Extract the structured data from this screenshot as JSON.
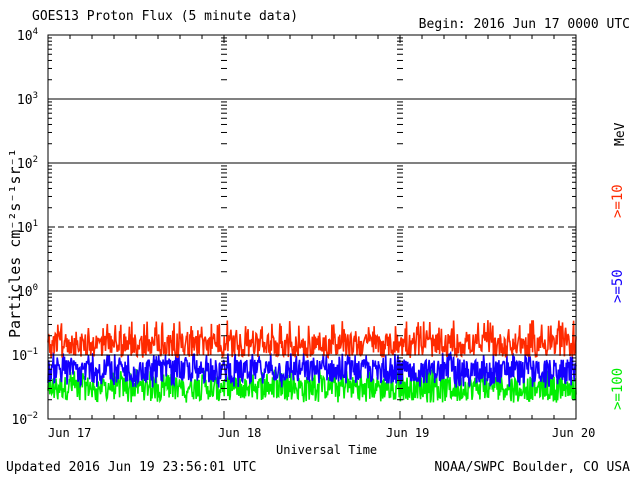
{
  "header": {
    "title": "GOES13 Proton Flux (5 minute data)",
    "begin": "Begin: 2016 Jun 17 0000 UTC"
  },
  "footer": {
    "updated": "Updated 2016 Jun 19 23:56:01 UTC",
    "credit": "NOAA/SWPC Boulder, CO USA"
  },
  "colors": {
    "ge10": "#ff2a00",
    "ge50": "#1400ff",
    "ge100": "#00ee00",
    "axes": "#000000"
  },
  "chart_data": {
    "type": "line",
    "title": "GOES13 Proton Flux (5 minute data)",
    "xlabel": "Universal Time",
    "ylabel": "Particles cm⁻²s⁻¹sr⁻¹",
    "yscale": "log",
    "ylim": [
      0.01,
      10000
    ],
    "ytick_labels": [
      "10⁻²",
      "10⁻¹",
      "10⁰",
      "10¹",
      "10²",
      "10³",
      "10⁴"
    ],
    "y_exponents": [
      -2,
      -1,
      0,
      1,
      2,
      3,
      4
    ],
    "x_tick_labels": [
      "Jun 17",
      "Jun 18",
      "Jun 19",
      "Jun 20"
    ],
    "xlim": [
      "2016-06-17 00:00",
      "2016-06-20 00:00"
    ],
    "energy_unit": "MeV",
    "thresholds": [
      {
        "label": ">=10",
        "color": "#ff2a00",
        "level": 10
      },
      {
        "label": "",
        "color": "#000000",
        "level": 100,
        "style": "solid"
      }
    ],
    "series": [
      {
        "name": ">=10",
        "color": "#ff2a00",
        "typical": 0.14,
        "range": [
          0.09,
          0.35
        ]
      },
      {
        "name": ">=50",
        "color": "#1400ff",
        "typical": 0.055,
        "range": [
          0.03,
          0.11
        ]
      },
      {
        "name": ">=100",
        "color": "#00ee00",
        "typical": 0.03,
        "range": [
          0.018,
          0.06
        ]
      }
    ]
  }
}
